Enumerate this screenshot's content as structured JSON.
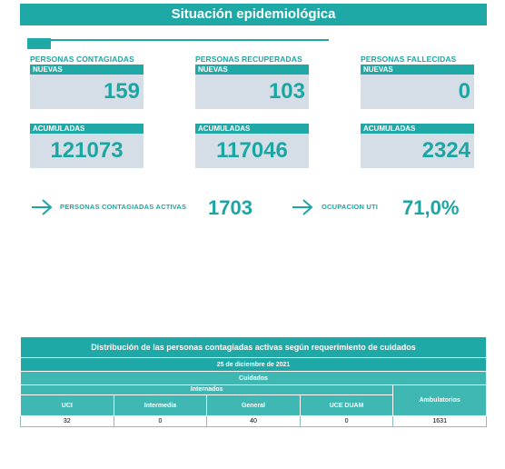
{
  "header": {
    "title": "Situación epidemiológica"
  },
  "groups": [
    {
      "title": "PERSONAS CONTAGIADAS",
      "new_label": "NUEVAS",
      "new_value": "159",
      "acc_label": "ACUMULADAS",
      "acc_value": "121073"
    },
    {
      "title": "PERSONAS RECUPERADAS",
      "new_label": "NUEVAS",
      "new_value": "103",
      "acc_label": "ACUMULADAS",
      "acc_value": "117046"
    },
    {
      "title": "PERSONAS FALLECIDAS",
      "new_label": "NUEVAS",
      "new_value": "0",
      "acc_label": "ACUMULADAS",
      "acc_value": "2324"
    }
  ],
  "indicators": {
    "active": {
      "label": "PERSONAS CONTAGIADAS ACTIVAS",
      "value": "1703"
    },
    "uti": {
      "label": "OCUPACION UTI",
      "value": "71,0%"
    }
  },
  "table": {
    "title": "Distribución de las personas contagiadas activas según requerimiento de cuidados",
    "date": "25 de diciembre de 2021",
    "group_header": "Cuidados",
    "sub_header": "Internados",
    "columns": [
      "UCI",
      "Intermedia",
      "General",
      "UCE DUAM",
      "Ambulatorios"
    ],
    "values": [
      "32",
      "0",
      "40",
      "0",
      "1631"
    ]
  },
  "colors": {
    "accent": "#1fa9a6",
    "box_bg": "#d5dee6"
  }
}
